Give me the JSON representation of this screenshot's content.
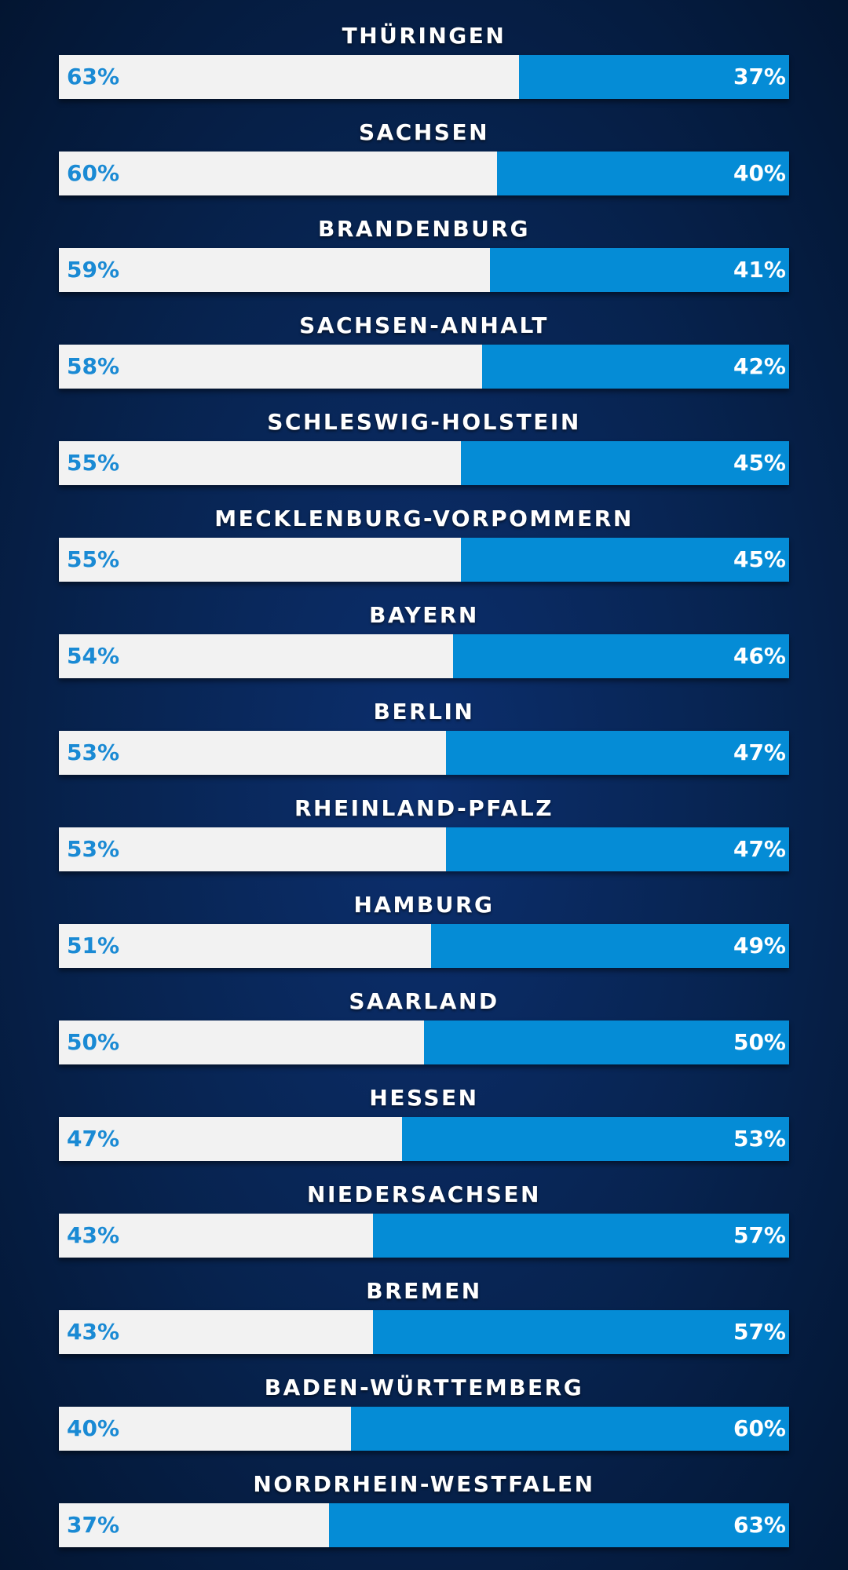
{
  "chart_data": {
    "type": "bar",
    "orientation": "horizontal",
    "stacked": true,
    "title": "",
    "categories": [
      "THÜRINGEN",
      "SACHSEN",
      "BRANDENBURG",
      "SACHSEN-ANHALT",
      "SCHLESWIG-HOLSTEIN",
      "MECKLENBURG-VORPOMMERN",
      "BAYERN",
      "BERLIN",
      "RHEINLAND-PFALZ",
      "HAMBURG",
      "SAARLAND",
      "HESSEN",
      "NIEDERSACHSEN",
      "BREMEN",
      "BADEN-WÜRTTEMBERG",
      "NORDRHEIN-WESTFALEN"
    ],
    "series": [
      {
        "color": "#f2f2f2",
        "values": [
          63,
          60,
          59,
          58,
          55,
          55,
          54,
          53,
          53,
          51,
          50,
          47,
          43,
          43,
          40,
          37
        ],
        "labels": [
          "63%",
          "60%",
          "59%",
          "58%",
          "55%",
          "55%",
          "54%",
          "53%",
          "53%",
          "51%",
          "50%",
          "47%",
          "43%",
          "43%",
          "40%",
          "37%"
        ]
      },
      {
        "color": "#058cd6",
        "values": [
          37,
          40,
          41,
          42,
          45,
          45,
          46,
          47,
          47,
          49,
          50,
          53,
          57,
          57,
          60,
          63
        ],
        "labels": [
          "37%",
          "40%",
          "41%",
          "42%",
          "45%",
          "45%",
          "46%",
          "47%",
          "47%",
          "49%",
          "50%",
          "53%",
          "57%",
          "57%",
          "60%",
          "63%"
        ]
      }
    ],
    "xlim": [
      0,
      100
    ],
    "unit": "%",
    "grid": false,
    "legend": "none"
  }
}
